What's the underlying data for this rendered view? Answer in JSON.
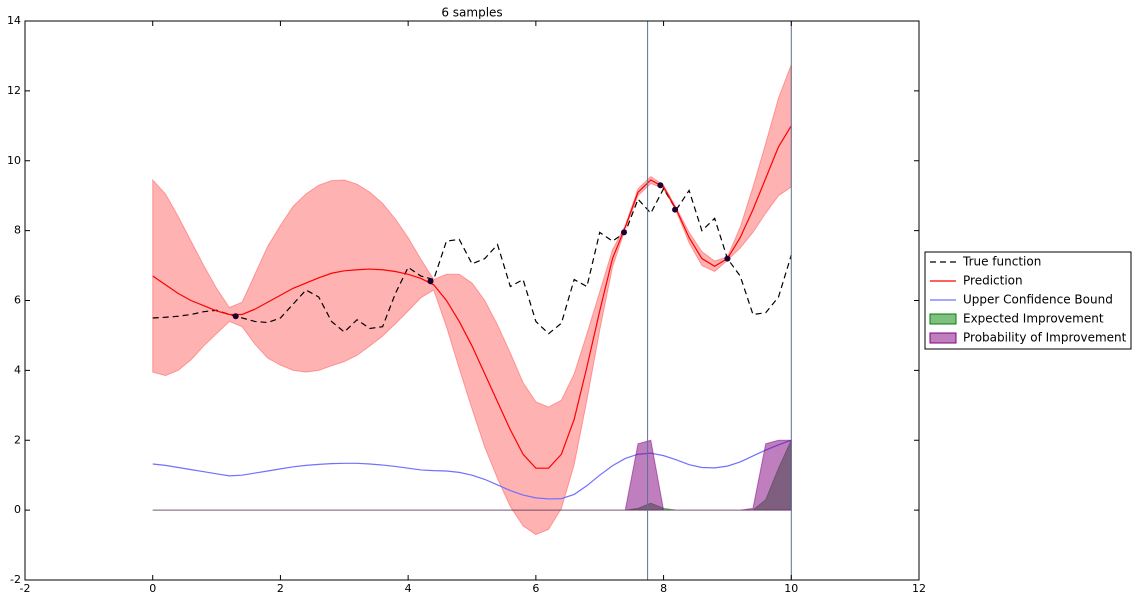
{
  "chart_data": {
    "type": "line",
    "title": "6 samples",
    "x": [
      0,
      0.2,
      0.4,
      0.6,
      0.8,
      1.0,
      1.2,
      1.4,
      1.6,
      1.8,
      2.0,
      2.2,
      2.4,
      2.6,
      2.8,
      3.0,
      3.2,
      3.4,
      3.6,
      3.8,
      4.0,
      4.2,
      4.4,
      4.6,
      4.8,
      5.0,
      5.2,
      5.4,
      5.6,
      5.8,
      6.0,
      6.2,
      6.4,
      6.6,
      6.8,
      7.0,
      7.2,
      7.4,
      7.6,
      7.8,
      8.0,
      8.2,
      8.4,
      8.6,
      8.8,
      9.0,
      9.2,
      9.4,
      9.6,
      9.8,
      10.0
    ],
    "series": [
      {
        "name": "True function",
        "color": "#000000",
        "dashed": true,
        "values": [
          5.5,
          5.52,
          5.55,
          5.6,
          5.68,
          5.72,
          5.6,
          5.5,
          5.4,
          5.37,
          5.5,
          5.9,
          6.3,
          6.1,
          5.4,
          5.1,
          5.45,
          5.2,
          5.25,
          6.2,
          6.95,
          6.7,
          6.6,
          7.7,
          7.75,
          7.05,
          7.2,
          7.6,
          6.4,
          6.6,
          5.4,
          5.05,
          5.35,
          6.6,
          6.4,
          7.95,
          7.7,
          7.95,
          8.9,
          8.5,
          9.2,
          8.6,
          9.15,
          8.0,
          8.35,
          7.2,
          6.7,
          5.6,
          5.65,
          6.1,
          7.3
        ]
      },
      {
        "name": "Prediction",
        "color": "#ff0000",
        "values": [
          6.7,
          6.45,
          6.2,
          6.0,
          5.85,
          5.7,
          5.6,
          5.6,
          5.75,
          5.95,
          6.15,
          6.35,
          6.5,
          6.65,
          6.78,
          6.85,
          6.88,
          6.9,
          6.88,
          6.83,
          6.75,
          6.63,
          6.45,
          6.0,
          5.4,
          4.7,
          3.9,
          3.1,
          2.3,
          1.6,
          1.2,
          1.2,
          1.6,
          2.6,
          4.1,
          5.7,
          7.2,
          8.1,
          9.1,
          9.45,
          9.25,
          8.6,
          7.8,
          7.2,
          6.98,
          7.2,
          7.8,
          8.6,
          9.5,
          10.4,
          11.0
        ]
      },
      {
        "name": "Upper Confidence Bound",
        "color": "#7070ff",
        "values": [
          1.32,
          1.28,
          1.22,
          1.16,
          1.1,
          1.04,
          0.98,
          1.0,
          1.06,
          1.12,
          1.18,
          1.24,
          1.28,
          1.31,
          1.33,
          1.34,
          1.34,
          1.32,
          1.29,
          1.25,
          1.2,
          1.15,
          1.13,
          1.12,
          1.08,
          1.0,
          0.88,
          0.72,
          0.56,
          0.43,
          0.35,
          0.32,
          0.33,
          0.45,
          0.7,
          1.0,
          1.27,
          1.48,
          1.6,
          1.63,
          1.56,
          1.44,
          1.3,
          1.22,
          1.21,
          1.26,
          1.38,
          1.55,
          1.72,
          1.87,
          2.0
        ]
      },
      {
        "name": "Expected Improvement",
        "color": "#008000",
        "filled": true,
        "values": [
          0,
          0,
          0,
          0,
          0,
          0,
          0,
          0,
          0,
          0,
          0,
          0,
          0,
          0,
          0,
          0,
          0,
          0,
          0,
          0,
          0,
          0,
          0,
          0,
          0,
          0,
          0,
          0,
          0,
          0,
          0,
          0,
          0,
          0,
          0,
          0,
          0,
          0,
          0.05,
          0.2,
          0.05,
          0,
          0,
          0,
          0,
          0,
          0,
          0,
          0.3,
          1.2,
          2.0
        ]
      },
      {
        "name": "Probability of Improvement",
        "color": "#800080",
        "filled": true,
        "values": [
          0,
          0,
          0,
          0,
          0,
          0,
          0,
          0,
          0,
          0,
          0,
          0,
          0,
          0,
          0,
          0,
          0,
          0,
          0,
          0,
          0,
          0,
          0,
          0,
          0,
          0,
          0,
          0,
          0,
          0,
          0,
          0,
          0,
          0,
          0,
          0,
          0,
          0,
          1.9,
          2.0,
          0,
          0,
          0,
          0,
          0,
          0,
          0,
          0.05,
          1.9,
          2.0,
          2.0
        ]
      }
    ],
    "band": {
      "color": "#ff0000",
      "lower": [
        3.95,
        3.85,
        4.0,
        4.3,
        4.7,
        5.05,
        5.4,
        5.25,
        4.75,
        4.35,
        4.15,
        4.0,
        3.95,
        4.0,
        4.13,
        4.25,
        4.43,
        4.7,
        4.98,
        5.33,
        5.7,
        6.08,
        6.3,
        5.25,
        4.05,
        2.9,
        1.8,
        0.9,
        0.1,
        -0.45,
        -0.7,
        -0.55,
        0.05,
        1.3,
        3.15,
        5.15,
        6.95,
        8.05,
        9.0,
        9.35,
        9.2,
        8.55,
        7.65,
        7.0,
        6.83,
        7.15,
        7.5,
        7.95,
        8.5,
        9.0,
        9.25
      ],
      "upper": [
        9.45,
        9.05,
        8.4,
        7.7,
        7.0,
        6.35,
        5.8,
        5.95,
        6.75,
        7.55,
        8.15,
        8.7,
        9.05,
        9.3,
        9.43,
        9.45,
        9.33,
        9.1,
        8.78,
        8.33,
        7.8,
        7.18,
        6.6,
        6.75,
        6.75,
        6.5,
        6.0,
        5.3,
        4.5,
        3.65,
        3.1,
        2.95,
        3.15,
        3.9,
        5.05,
        6.25,
        7.45,
        8.15,
        9.2,
        9.55,
        9.3,
        8.65,
        7.95,
        7.4,
        7.13,
        7.25,
        8.1,
        9.25,
        10.5,
        11.8,
        12.75
      ]
    },
    "samples": {
      "color": "#1a0033",
      "x": [
        1.3,
        4.35,
        7.38,
        7.95,
        8.18,
        9.0
      ],
      "y": [
        5.55,
        6.55,
        7.95,
        9.3,
        8.6,
        7.2
      ]
    },
    "vlines": {
      "color": "#5a7090",
      "x": [
        7.75,
        10
      ]
    },
    "xlim": [
      -2,
      12
    ],
    "ylim": [
      -2,
      14
    ],
    "xticks": [
      -2,
      0,
      2,
      4,
      6,
      8,
      10,
      12
    ],
    "yticks": [
      -2,
      0,
      2,
      4,
      6,
      8,
      10,
      12,
      14
    ],
    "grid": false,
    "legend": "outside right"
  }
}
